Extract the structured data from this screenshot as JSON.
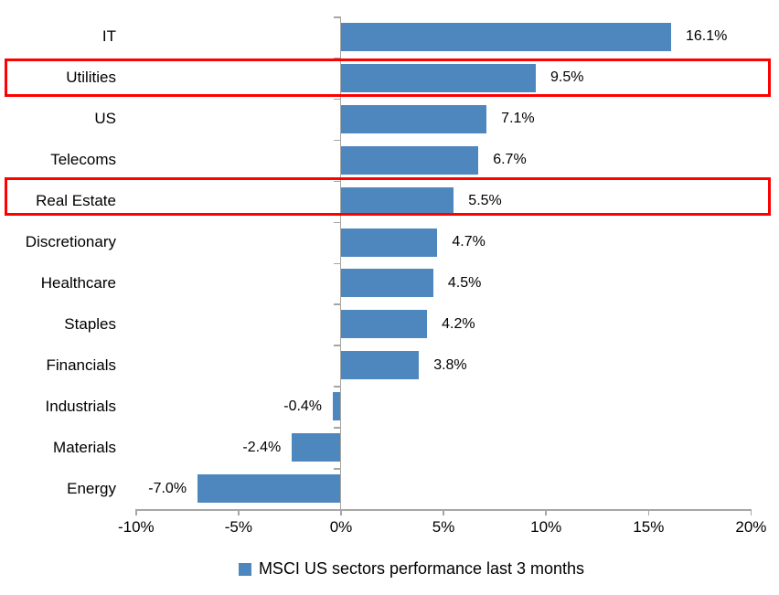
{
  "chart_data": {
    "type": "bar",
    "orientation": "horizontal",
    "title": "",
    "xlabel": "",
    "ylabel": "",
    "categories": [
      "IT",
      "Utilities",
      "US",
      "Telecoms",
      "Real Estate",
      "Discretionary",
      "Healthcare",
      "Staples",
      "Financials",
      "Industrials",
      "Materials",
      "Energy"
    ],
    "values": [
      16.1,
      9.5,
      7.1,
      6.7,
      5.5,
      4.7,
      4.5,
      4.2,
      3.8,
      -0.4,
      -2.4,
      -7.0
    ],
    "value_labels": [
      "16.1%",
      "9.5%",
      "7.1%",
      "6.7%",
      "5.5%",
      "4.7%",
      "4.5%",
      "4.2%",
      "3.8%",
      "-0.4%",
      "-2.4%",
      "-7.0%"
    ],
    "x_tick_values": [
      -10,
      -5,
      0,
      5,
      10,
      15,
      20
    ],
    "x_tick_labels": [
      "-10%",
      "-5%",
      "0%",
      "5%",
      "10%",
      "15%",
      "20%"
    ],
    "xlim": [
      -10,
      20
    ],
    "grid": false,
    "legend": "MSCI US sectors performance last 3 months",
    "legend_position": "bottom-center",
    "highlighted_categories": [
      "Utilities",
      "Real Estate"
    ],
    "colors": {
      "bar": "#4e87be",
      "highlight_border": "#ff0000",
      "axis": "#a6a6a6",
      "text": "#000000"
    }
  }
}
